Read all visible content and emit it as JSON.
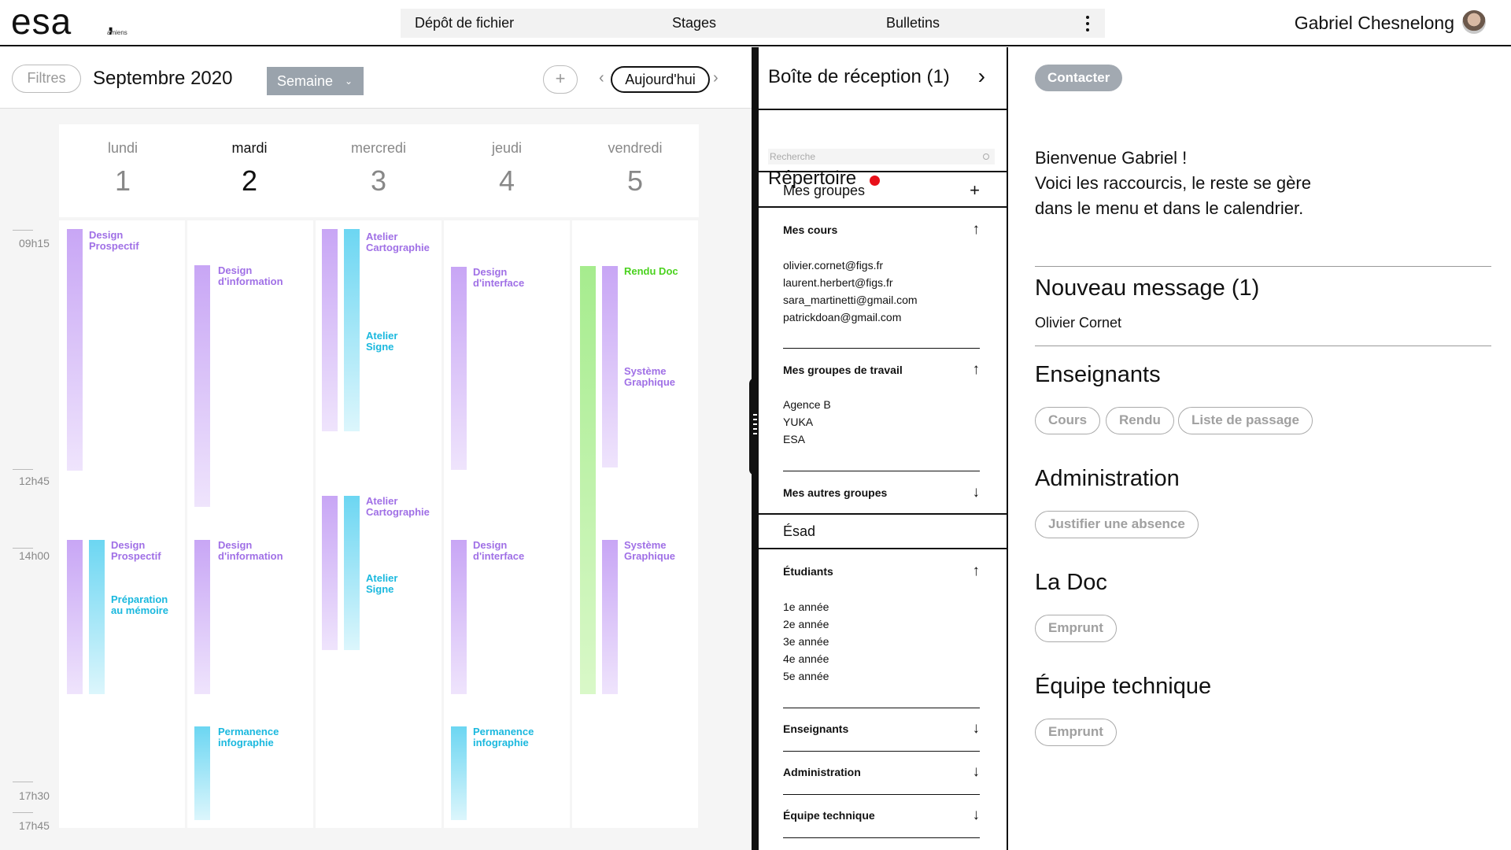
{
  "header": {
    "logo_text": "esa",
    "logo_sub": "amiens",
    "nav": [
      "Dépôt de fichier",
      "Stages",
      "Bulletins"
    ],
    "user_name": "Gabriel Chesnelong"
  },
  "calendar": {
    "filters_label": "Filtres",
    "month": "Septembre 2020",
    "view": "Semaine",
    "add_symbol": "+",
    "today_label": "Aujourd'hui",
    "times": [
      "09h15",
      "12h45",
      "14h00",
      "17h30",
      "17h45"
    ],
    "days": [
      {
        "name": "lundi",
        "num": "1"
      },
      {
        "name": "mardi",
        "num": "2"
      },
      {
        "name": "mercredi",
        "num": "3"
      },
      {
        "name": "jeudi",
        "num": "4"
      },
      {
        "name": "vendredi",
        "num": "5"
      }
    ],
    "events": {
      "mon_1": "Design\nProspectif",
      "mon_2": "Design\nProspectif",
      "mon_3": "Préparation\nau mémoire",
      "tue_1": "Design\nd'information",
      "tue_2": "Design\nd'information",
      "tue_3": "Permanence\ninfographie",
      "wed_1": "Atelier\nCartographie",
      "wed_2": "Atelier\nSigne",
      "wed_3": "Atelier\nCartographie",
      "wed_4": "Atelier\nSigne",
      "thu_1": "Design\nd'interface",
      "thu_2": "Design\nd'interface",
      "thu_3": "Permanence\ninfographie",
      "fri_1": "Rendu Doc",
      "fri_2": "Système\nGraphique",
      "fri_3": "Système\nGraphique"
    },
    "colors": {
      "purple": "#c8a6f5",
      "cyan": "#6cd6f2",
      "green": "#a6ec8e"
    }
  },
  "directory": {
    "inbox": "Boîte de réception (1)",
    "repertoire": "Répertoire",
    "search_placeholder": "Recherche",
    "my_groups": "Mes groupes",
    "my_courses": "Mes cours",
    "course_emails": [
      "olivier.cornet@figs.fr",
      "laurent.herbert@figs.fr",
      "sara_martinetti@gmail.com",
      "patrickdoan@gmail.com"
    ],
    "work_groups": "Mes groupes de travail",
    "work_group_items": [
      "Agence B",
      "YUKA",
      "ESA"
    ],
    "other_groups": "Mes autres groupes",
    "esad": "Ésad",
    "students": "Étudiants",
    "student_years": [
      "1e année",
      "2e année",
      "3e année",
      "4e année",
      "5e année"
    ],
    "teachers": "Enseignants",
    "administration": "Administration",
    "tech_team": "Équipe technique"
  },
  "dashboard": {
    "contact_label": "Contacter",
    "welcome_lines": [
      "Bienvenue Gabriel !",
      "Voici les raccourcis, le reste se gère",
      "dans le menu et dans le calendrier."
    ],
    "new_message_title": "Nouveau message (1)",
    "new_message_from": "Olivier Cornet",
    "teachers_title": "Enseignants",
    "teachers_buttons": [
      "Cours",
      "Rendu",
      "Liste de passage"
    ],
    "admin_title": "Administration",
    "admin_button": "Justifier une absence",
    "doc_title": "La Doc",
    "doc_button": "Emprunt",
    "tech_title": "Équipe technique",
    "tech_button": "Emprunt"
  }
}
